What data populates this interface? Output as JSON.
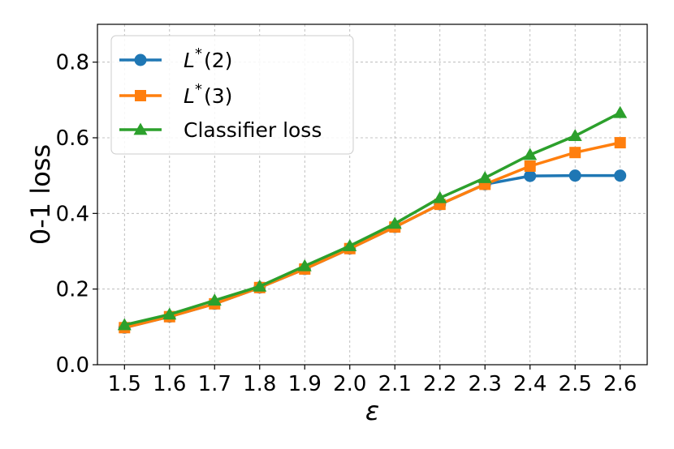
{
  "chart_data": {
    "type": "line",
    "xlabel": "ε",
    "ylabel": "0-1 loss",
    "x": [
      1.5,
      1.6,
      1.7,
      1.8,
      1.9,
      2.0,
      2.1,
      2.2,
      2.3,
      2.4,
      2.5,
      2.6
    ],
    "x_tick_labels": [
      "1.5",
      "1.6",
      "1.7",
      "1.8",
      "1.9",
      "2.0",
      "2.1",
      "2.2",
      "2.3",
      "2.4",
      "2.5",
      "2.6"
    ],
    "y_ticks": [
      0.0,
      0.2,
      0.4,
      0.6,
      0.8
    ],
    "y_tick_labels": [
      "0.0",
      "0.2",
      "0.4",
      "0.6",
      "0.8"
    ],
    "xlim": [
      1.44,
      2.66
    ],
    "ylim": [
      0.0,
      0.9
    ],
    "grid": true,
    "legend_position": "top-left",
    "series": [
      {
        "name_main": "L",
        "name_sup": "*",
        "name_rest": "(2)",
        "color": "#1f77b4",
        "marker": "circle",
        "values": [
          0.098,
          0.127,
          0.161,
          0.204,
          0.253,
          0.307,
          0.364,
          0.424,
          0.477,
          0.499,
          0.5,
          0.5
        ]
      },
      {
        "name_main": "L",
        "name_sup": "*",
        "name_rest": "(3)",
        "color": "#ff7f0e",
        "marker": "square",
        "values": [
          0.098,
          0.127,
          0.161,
          0.204,
          0.253,
          0.307,
          0.364,
          0.424,
          0.477,
          0.525,
          0.561,
          0.587
        ]
      },
      {
        "name_main": "Classifier loss",
        "name_sup": "",
        "name_rest": "",
        "color": "#2ca02c",
        "marker": "triangle",
        "values": [
          0.105,
          0.133,
          0.17,
          0.207,
          0.261,
          0.314,
          0.373,
          0.441,
          0.494,
          0.555,
          0.605,
          0.666
        ]
      }
    ]
  }
}
